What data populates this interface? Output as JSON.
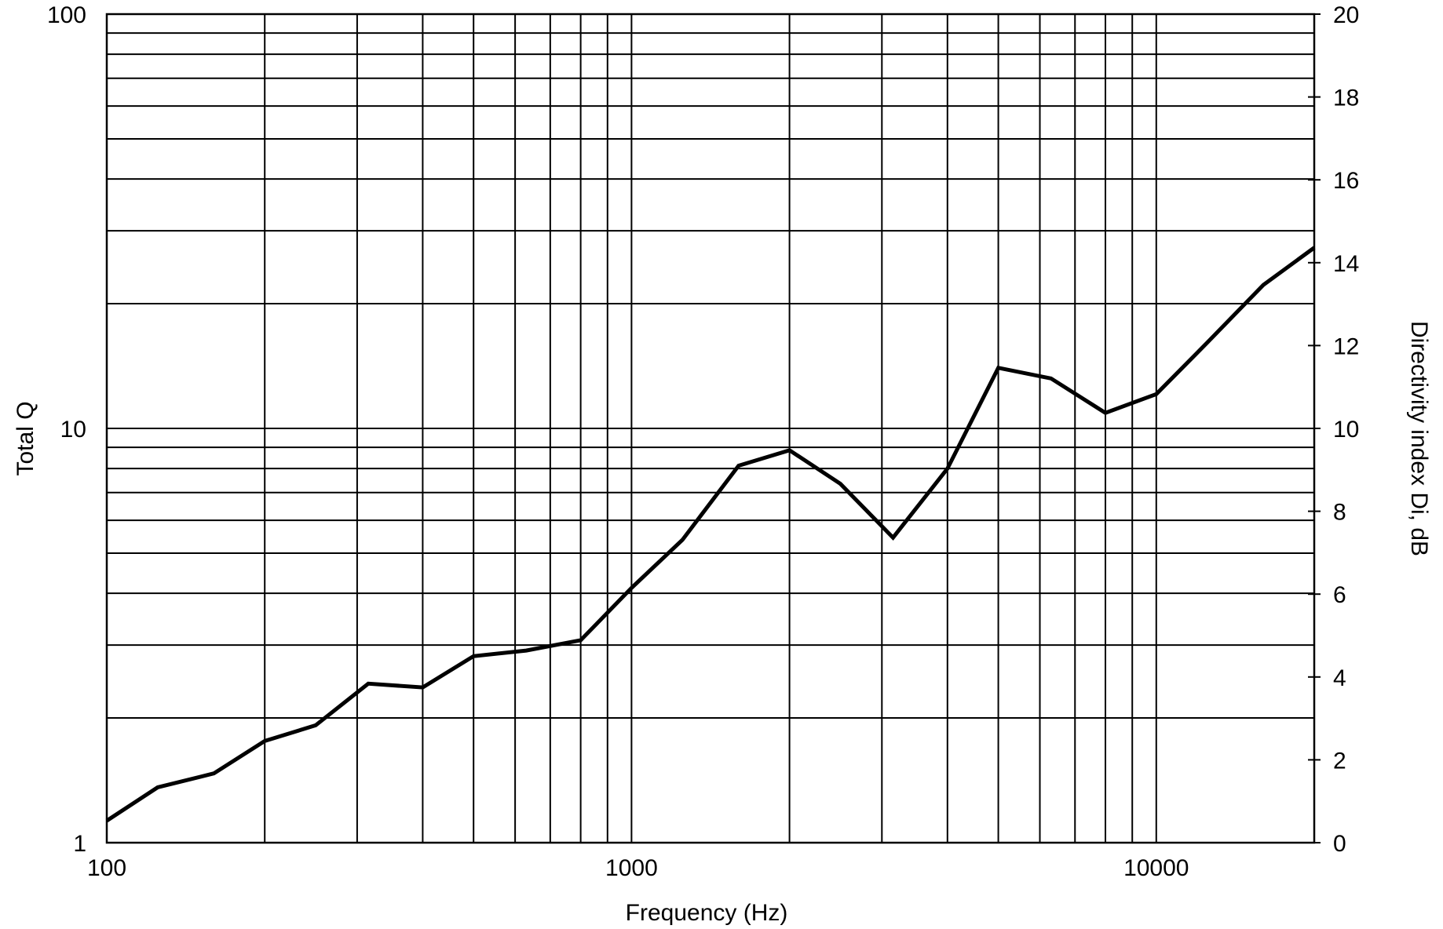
{
  "chart_data": {
    "type": "line",
    "title": "",
    "xlabel": "Frequency (Hz)",
    "ylabel": "Total Q",
    "y2label": "Directivity index Di, dB",
    "x_scale": "log",
    "y_scale": "log",
    "xlim": [
      100,
      20000
    ],
    "ylim": [
      1,
      100
    ],
    "y2lim": [
      0,
      20
    ],
    "x_ticks": [
      "100",
      "1000",
      "10000"
    ],
    "y_ticks": [
      "1",
      "10",
      "100"
    ],
    "y2_ticks": [
      "0",
      "2",
      "4",
      "6",
      "8",
      "10",
      "12",
      "14",
      "16",
      "18",
      "20"
    ],
    "grid": true,
    "legend": "none",
    "colors": {
      "line": "#000000",
      "grid": "#000000",
      "background": "#ffffff"
    },
    "series": [
      {
        "x": [
          100,
          125,
          160,
          200,
          250,
          315,
          400,
          500,
          630,
          800,
          1000,
          1250,
          1600,
          2000,
          2500,
          3150,
          4000,
          5000,
          6300,
          8000,
          10000,
          12500,
          16000,
          20000
        ],
        "y": [
          1.13,
          1.36,
          1.47,
          1.76,
          1.92,
          2.42,
          2.37,
          2.82,
          2.91,
          3.08,
          4.12,
          5.38,
          8.13,
          8.86,
          7.35,
          5.45,
          8.0,
          14.0,
          13.2,
          10.9,
          12.1,
          16.1,
          22.2,
          27.3
        ]
      }
    ]
  }
}
